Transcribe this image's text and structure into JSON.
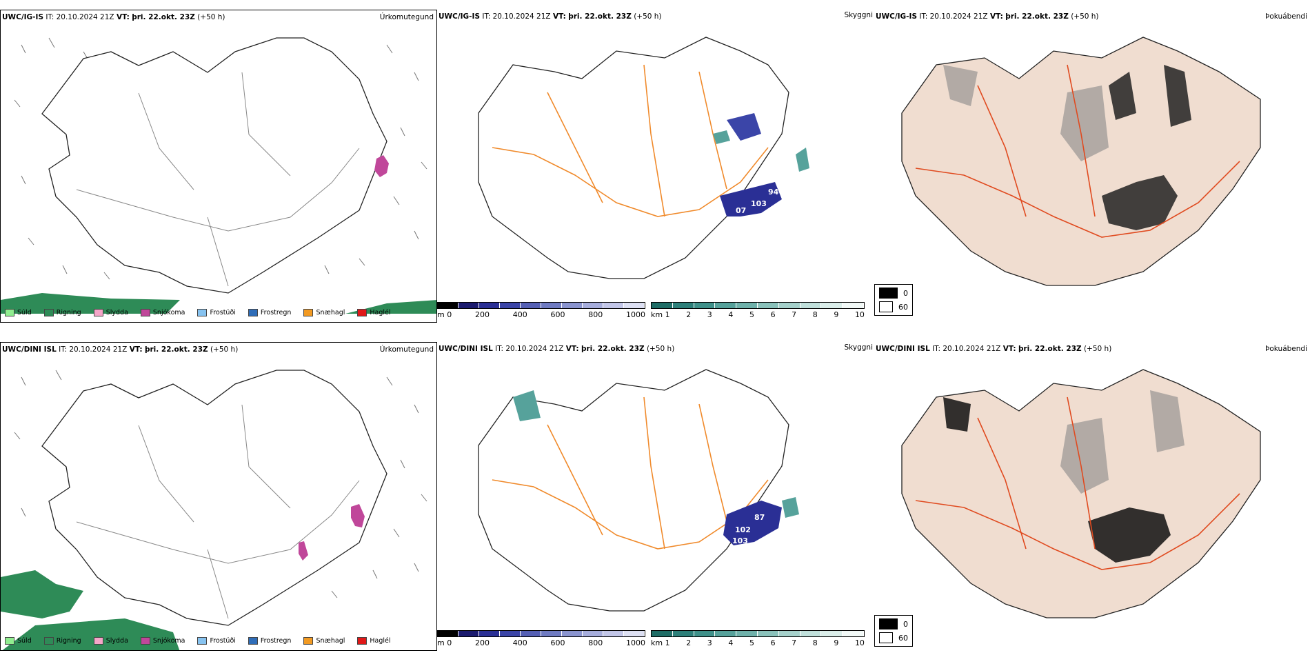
{
  "rows": [
    {
      "model": "UWC/IG-IS",
      "init": "IT: 20.10.2024 21Z",
      "valid_label": "VT:",
      "valid_time": "þri. 22.okt. 23Z",
      "lead": "(+50 h)",
      "precip_title": "Úrkomutegund",
      "vis_title": "Skyggni",
      "fog_title": "Þokuábendi",
      "vis_values": [
        "94",
        "103",
        "07"
      ]
    },
    {
      "model": "UWC/DINI ISL",
      "init": "IT: 20.10.2024 21Z",
      "valid_label": "VT:",
      "valid_time": "þri. 22.okt. 23Z",
      "lead": "(+50 h)",
      "precip_title": "Úrkomutegund",
      "vis_title": "Skyggni",
      "fog_title": "Þokuábendi",
      "vis_values": [
        "87",
        "102",
        "103"
      ]
    }
  ],
  "precip_legend": [
    {
      "label": "Súld",
      "color": "#90ee90"
    },
    {
      "label": "Rigning",
      "color": "#2e8b57"
    },
    {
      "label": "Slydda",
      "color": "#f4a6c8"
    },
    {
      "label": "Snjókoma",
      "color": "#c0479a"
    },
    {
      "label": "Frostúði",
      "color": "#87c3f0"
    },
    {
      "label": "Frostregn",
      "color": "#2f6db8"
    },
    {
      "label": "Snæhagl",
      "color": "#f29a22"
    },
    {
      "label": "Haglél",
      "color": "#e01818"
    }
  ],
  "vis_scale_m": {
    "unit": "m",
    "ticks": [
      "0",
      "200",
      "400",
      "600",
      "800",
      "1000"
    ],
    "colors": [
      "#000000",
      "#1a1a6e",
      "#2a2f95",
      "#3b45a8",
      "#5560b5",
      "#6f7bc2",
      "#8a94cf",
      "#a6addc",
      "#c2c6e8",
      "#dde0f3"
    ]
  },
  "vis_scale_km": {
    "unit": "km",
    "ticks": [
      "1",
      "2",
      "3",
      "4",
      "5",
      "6",
      "7",
      "8",
      "9",
      "10"
    ],
    "colors": [
      "#1f6e67",
      "#2d807a",
      "#3f918a",
      "#56a29b",
      "#6fb2ab",
      "#8ac2bb",
      "#a5d1cb",
      "#c0e0db",
      "#dbeeea",
      "#f2f9f7"
    ]
  },
  "fog_legend": [
    {
      "label": "0",
      "color": "#000000"
    },
    {
      "label": "60",
      "color": "#ffffff"
    }
  ]
}
